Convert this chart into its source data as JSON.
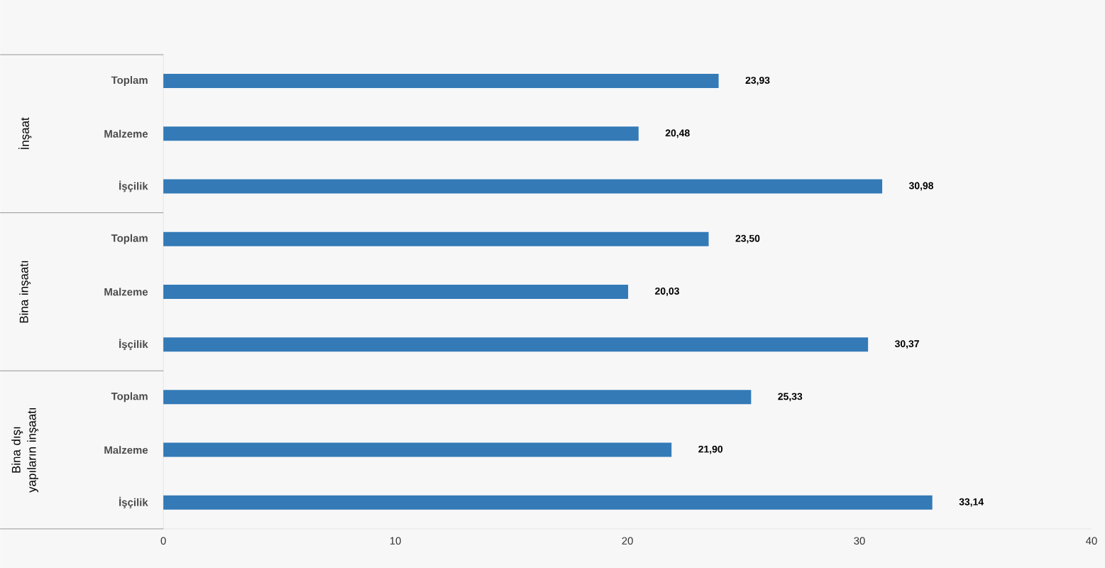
{
  "chart_data": {
    "type": "bar",
    "orientation": "horizontal",
    "categories": [
      "Toplam",
      "Malzeme",
      "İşçilik",
      "Toplam",
      "Malzeme",
      "İşçilik",
      "Toplam",
      "Malzeme",
      "İşçilik"
    ],
    "values": [
      23.93,
      20.48,
      30.98,
      23.5,
      20.03,
      30.37,
      25.33,
      21.9,
      33.14
    ],
    "value_labels": [
      "23,93",
      "20,48",
      "30,98",
      "23,50",
      "20,03",
      "30,37",
      "25,33",
      "21,90",
      "33,14"
    ],
    "color": "#337ab7",
    "xlim": [
      0,
      40
    ],
    "xticks": [
      0,
      10,
      20,
      30,
      40
    ],
    "grid": false,
    "annotations": [
      "İnşaat",
      "Bina inşaatı",
      "Bina dışı yapıların inşaatı"
    ]
  }
}
